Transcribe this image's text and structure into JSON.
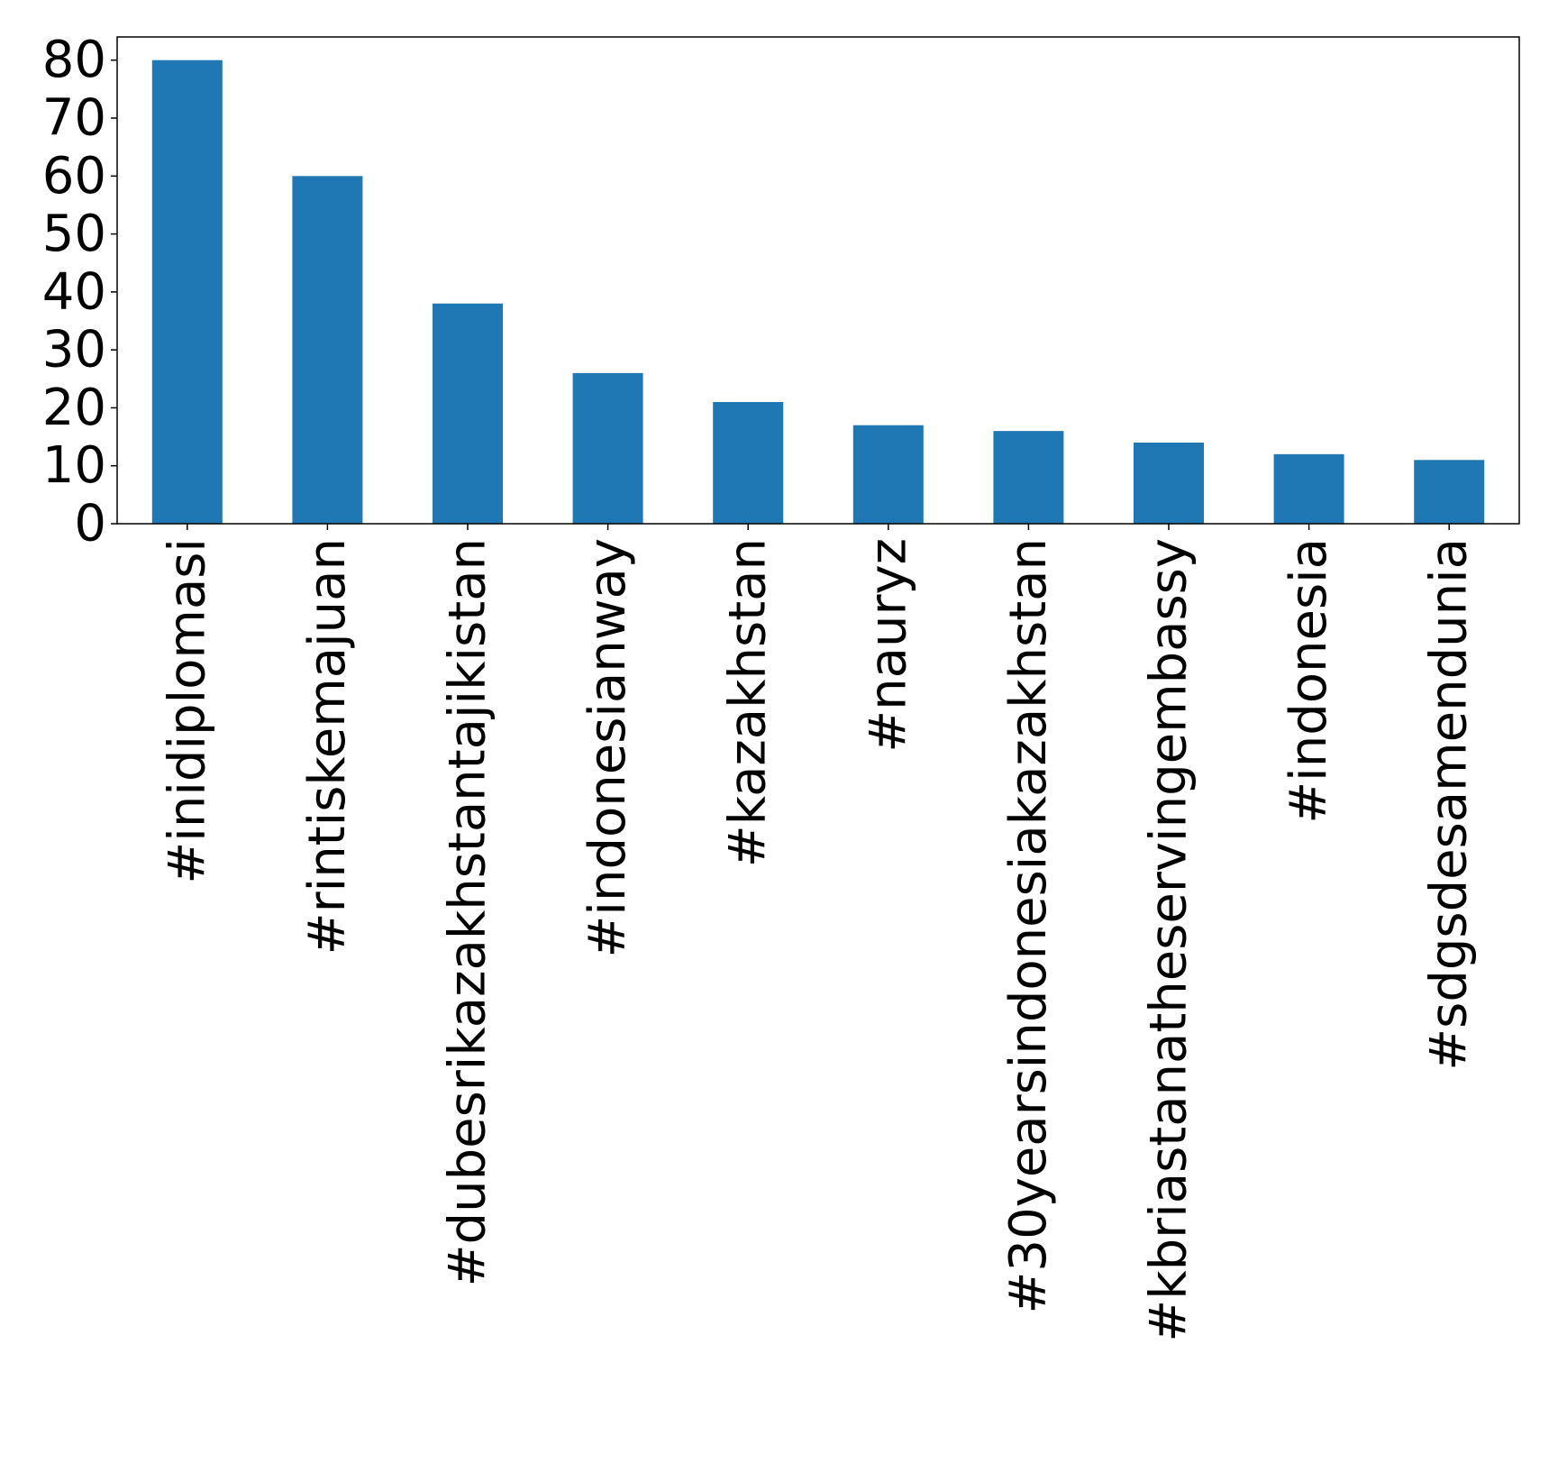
{
  "chart_data": {
    "type": "bar",
    "title": "",
    "xlabel": "",
    "ylabel": "",
    "categories": [
      "#inidiplomasi",
      "#rintiskemajuan",
      "#dubesrikazakhstantajikistan",
      "#indonesianway",
      "#kazakhstan",
      "#nauryz",
      "#30yearsindonesiakazakhstan",
      "#kbriastanatheservingembassy",
      "#indonesia",
      "#sdgsdesamendunia"
    ],
    "values": [
      80,
      60,
      38,
      26,
      21,
      17,
      16,
      14,
      12,
      11
    ],
    "ylim": [
      0,
      84
    ],
    "yticks": [
      0,
      10,
      20,
      30,
      40,
      50,
      60,
      70,
      80
    ],
    "grid": false,
    "legend": "none",
    "colors": {
      "bar": "#1f77b4",
      "axis": "#000000",
      "background": "#ffffff"
    }
  }
}
